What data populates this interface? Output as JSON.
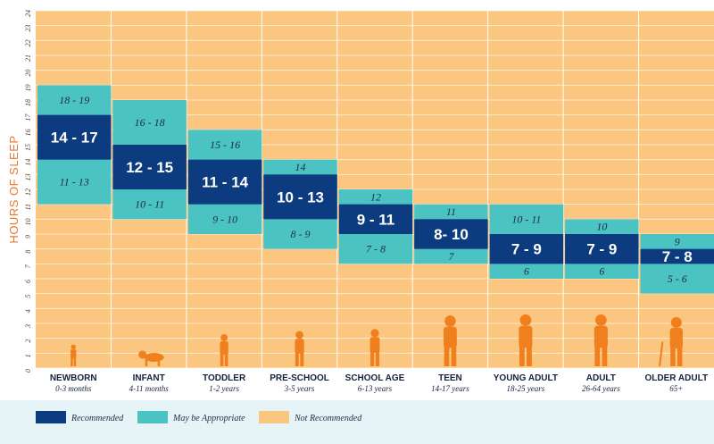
{
  "chart_data": {
    "type": "bar",
    "ylabel": "HOURS OF SLEEP",
    "ylim": [
      0,
      24
    ],
    "yticks": [
      "0",
      "1",
      "2",
      "3",
      "4",
      "5",
      "6",
      "7",
      "8",
      "9",
      "10",
      "11",
      "12",
      "13",
      "14",
      "15",
      "16",
      "17",
      "18",
      "19",
      "20",
      "21",
      "22",
      "23",
      "24"
    ],
    "grid": true,
    "legend_position": "bottom-left",
    "colors": {
      "recommended": "#0d3b7f",
      "may_be_appropriate": "#4cc3c3",
      "not_recommended": "#fbc67f",
      "silhouette": "#f07f1e",
      "axis_label": "#e8772e"
    },
    "legend": [
      {
        "key": "recommended",
        "label": "Recommended"
      },
      {
        "key": "may_be_appropriate",
        "label": "May be Appropriate"
      },
      {
        "key": "not_recommended",
        "label": "Not Recommended"
      }
    ],
    "groups": [
      {
        "name": "NEWBORN",
        "ages": "0-3 months",
        "may_range": [
          11,
          19
        ],
        "rec_range": [
          14,
          17
        ],
        "rec_label": "14 - 17",
        "upper_label": "18 - 19",
        "lower_label": "11 - 13",
        "icon": "baby-sitting-icon"
      },
      {
        "name": "INFANT",
        "ages": "4-11 months",
        "may_range": [
          10,
          18
        ],
        "rec_range": [
          12,
          15
        ],
        "rec_label": "12 - 15",
        "upper_label": "16 - 18",
        "lower_label": "10 - 11",
        "icon": "baby-crawling-icon"
      },
      {
        "name": "TODDLER",
        "ages": "1-2 years",
        "may_range": [
          9,
          16
        ],
        "rec_range": [
          11,
          14
        ],
        "rec_label": "11 - 14",
        "upper_label": "15 - 16",
        "lower_label": "9 - 10",
        "icon": "toddler-icon"
      },
      {
        "name": "PRE-SCHOOL",
        "ages": "3-5 years",
        "may_range": [
          8,
          14
        ],
        "rec_range": [
          10,
          13
        ],
        "rec_label": "10 - 13",
        "upper_label": "14",
        "lower_label": "8 - 9",
        "icon": "preschooler-icon"
      },
      {
        "name": "SCHOOL AGE",
        "ages": "6-13 years",
        "may_range": [
          7,
          12
        ],
        "rec_range": [
          9,
          11
        ],
        "rec_label": "9 - 11",
        "upper_label": "12",
        "lower_label": "7 - 8",
        "icon": "child-icon"
      },
      {
        "name": "TEEN",
        "ages": "14-17 years",
        "may_range": [
          7,
          11
        ],
        "rec_range": [
          8,
          10
        ],
        "rec_label": "8- 10",
        "upper_label": "11",
        "lower_label": "7",
        "icon": "teen-icon"
      },
      {
        "name": "YOUNG ADULT",
        "ages": "18-25 years",
        "may_range": [
          6,
          11
        ],
        "rec_range": [
          7,
          9
        ],
        "rec_label": "7 - 9",
        "upper_label": "10 - 11",
        "lower_label": "6",
        "icon": "young-adult-icon"
      },
      {
        "name": "ADULT",
        "ages": "26-64 years",
        "may_range": [
          6,
          10
        ],
        "rec_range": [
          7,
          9
        ],
        "rec_label": "7 - 9",
        "upper_label": "10",
        "lower_label": "6",
        "icon": "adult-icon"
      },
      {
        "name": "OLDER ADULT",
        "ages": "65+",
        "may_range": [
          5,
          9
        ],
        "rec_range": [
          7,
          8
        ],
        "rec_label": "7 - 8",
        "upper_label": "9",
        "lower_label": "5 - 6",
        "icon": "older-adult-icon"
      }
    ]
  }
}
